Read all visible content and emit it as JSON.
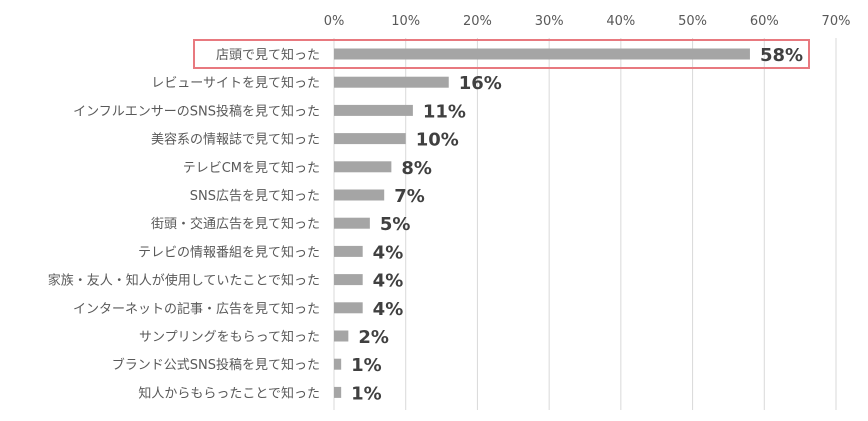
{
  "chart_data": {
    "type": "bar",
    "orientation": "horizontal",
    "categories": [
      "店頭で見て知った",
      "レビューサイトを見て知った",
      "インフルエンサーのSNS投稿を見て知った",
      "美容系の情報誌で見て知った",
      "テレビCMを見て知った",
      "SNS広告を見て知った",
      "街頭・交通広告を見て知った",
      "テレビの情報番組を見て知った",
      "家族・友人・知人が使用していたことで知った",
      "インターネットの記事・広告を見て知った",
      "サンプリングをもらって知った",
      "ブランド公式SNS投稿を見て知った",
      "知人からもらったことで知った"
    ],
    "values": [
      58,
      16,
      11,
      10,
      8,
      7,
      5,
      4,
      4,
      4,
      2,
      1,
      1
    ],
    "data_labels": [
      "58%",
      "16%",
      "11%",
      "10%",
      "8%",
      "7%",
      "5%",
      "4%",
      "4%",
      "4%",
      "2%",
      "1%",
      "1%"
    ],
    "xlim": [
      0,
      70
    ],
    "x_ticks": [
      0,
      10,
      20,
      30,
      40,
      50,
      60,
      70
    ],
    "x_tick_labels": [
      "0%",
      "10%",
      "20%",
      "30%",
      "40%",
      "50%",
      "60%",
      "70%"
    ],
    "x_axis_position": "top",
    "grid": true,
    "highlighted_index": 0,
    "colors": {
      "bar": "#a5a5a5",
      "gridline": "#d9d9d9",
      "highlight_border": "#e8797f",
      "label_text": "#595959",
      "value_text": "#404040"
    }
  }
}
